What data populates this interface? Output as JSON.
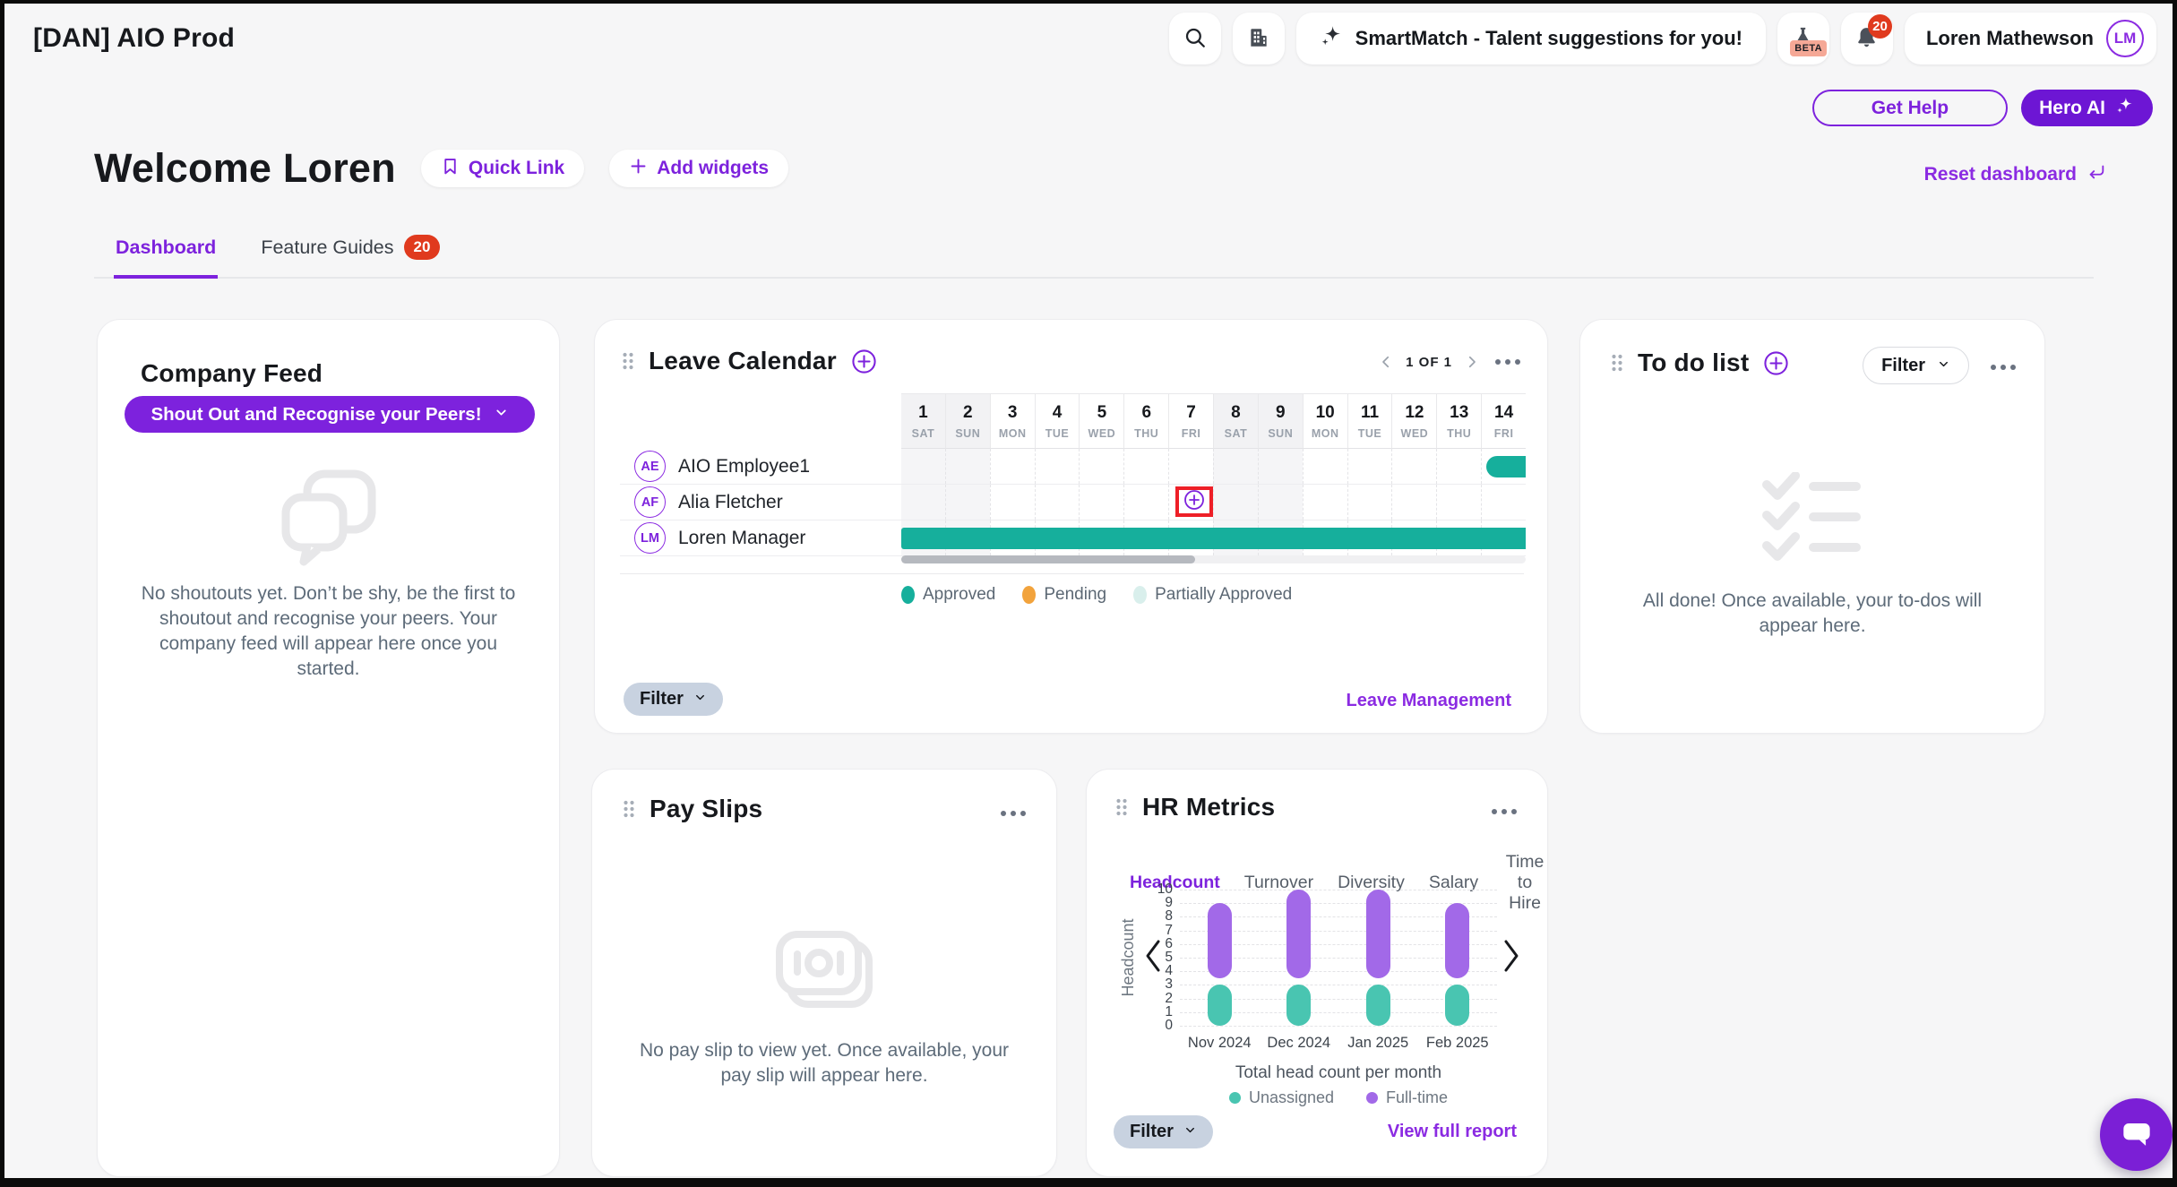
{
  "app": {
    "title": "[DAN] AIO Prod"
  },
  "header": {
    "smartmatch_label": "SmartMatch - Talent suggestions for you!",
    "beta_label": "BETA",
    "notification_count": "20",
    "user_name": "Loren Mathewson",
    "user_initials": "LM"
  },
  "actions": {
    "get_help": "Get Help",
    "hero_ai": "Hero AI",
    "quick_link": "Quick Link",
    "add_widgets": "Add widgets",
    "reset_dashboard": "Reset dashboard"
  },
  "welcome": {
    "title": "Welcome Loren"
  },
  "tabs": {
    "dashboard": "Dashboard",
    "feature_guides": "Feature Guides",
    "feature_guides_badge": "20"
  },
  "company_feed": {
    "title": "Company Feed",
    "shoutout_button": "Shout Out and Recognise your Peers!",
    "empty_text": "No shoutouts yet. Don’t be shy, be the first to shoutout and recognise your peers. Your company feed will appear here once you started."
  },
  "leave_calendar": {
    "title": "Leave Calendar",
    "pagination": "1 OF 1",
    "days": [
      {
        "num": "1",
        "dow": "SAT",
        "weekend": true
      },
      {
        "num": "2",
        "dow": "SUN",
        "weekend": true
      },
      {
        "num": "3",
        "dow": "MON",
        "weekend": false
      },
      {
        "num": "4",
        "dow": "TUE",
        "weekend": false
      },
      {
        "num": "5",
        "dow": "WED",
        "weekend": false
      },
      {
        "num": "6",
        "dow": "THU",
        "weekend": false
      },
      {
        "num": "7",
        "dow": "FRI",
        "weekend": false
      },
      {
        "num": "8",
        "dow": "SAT",
        "weekend": true
      },
      {
        "num": "9",
        "dow": "SUN",
        "weekend": true
      },
      {
        "num": "10",
        "dow": "MON",
        "weekend": false
      },
      {
        "num": "11",
        "dow": "TUE",
        "weekend": false
      },
      {
        "num": "12",
        "dow": "WED",
        "weekend": false
      },
      {
        "num": "13",
        "dow": "THU",
        "weekend": false
      },
      {
        "num": "14",
        "dow": "FRI",
        "weekend": false
      }
    ],
    "rows": [
      {
        "initials": "AE",
        "name": "AIO Employee1",
        "bars": [
          {
            "status": "Approved",
            "start_day": 14,
            "end_day": 14,
            "inset_left": 6,
            "round_left": true,
            "round_right": false
          }
        ]
      },
      {
        "initials": "AF",
        "name": "Alia Fletcher",
        "bars": [],
        "add_button_day": 7,
        "add_button_highlighted": true
      },
      {
        "initials": "LM",
        "name": "Loren Manager",
        "bars": [
          {
            "status": "Approved",
            "start_day": 1,
            "end_day": 14,
            "inset_left": 0,
            "round_left": false,
            "round_right": false
          }
        ]
      }
    ],
    "legend": [
      {
        "label": "Approved",
        "color": "#16af9c"
      },
      {
        "label": "Pending",
        "color": "#f2a33c"
      },
      {
        "label": "Partially Approved",
        "color": "#d9efec"
      }
    ],
    "filter_label": "Filter",
    "link": "Leave Management"
  },
  "todo": {
    "title": "To do list",
    "filter_label": "Filter",
    "empty_text": "All done! Once available, your to-dos will appear here."
  },
  "pay_slips": {
    "title": "Pay Slips",
    "empty_text": "No pay slip to view yet. Once available, your pay slip will appear here."
  },
  "hr_metrics": {
    "title": "HR Metrics",
    "tabs": [
      "Headcount",
      "Turnover",
      "Diversity",
      "Salary",
      "Time to Hire"
    ],
    "active_tab": "Headcount",
    "filter_label": "Filter",
    "link": "View full report"
  },
  "chart_data": {
    "type": "bar",
    "stacked": true,
    "categories": [
      "Nov 2024",
      "Dec 2024",
      "Jan 2025",
      "Feb 2025"
    ],
    "series": [
      {
        "name": "Unassigned",
        "color": "#49c5b1",
        "from": 0,
        "values": [
          3,
          3,
          3,
          3
        ]
      },
      {
        "name": "Full-time",
        "color": "#a269e8",
        "from": 3.5,
        "values": [
          9,
          10,
          10,
          9
        ]
      }
    ],
    "totals": [
      9,
      10,
      10,
      9
    ],
    "title": "Total head count per month",
    "xlabel": "",
    "ylabel": "Headcount",
    "ylim": [
      0,
      10
    ],
    "ytick_step": 1,
    "grid": "dashed-horizontal",
    "legend_position": "bottom"
  },
  "colors": {
    "accent_purple": "#7d22dd",
    "deep_purple": "#6d16d4",
    "teal": "#16af9c",
    "orange": "#f2a33c",
    "pale_teal": "#d9efec",
    "red": "#e03a1e",
    "chart_teal": "#49c5b1",
    "chart_purple": "#a269e8",
    "highlight_box_red": "#ee1f27"
  }
}
